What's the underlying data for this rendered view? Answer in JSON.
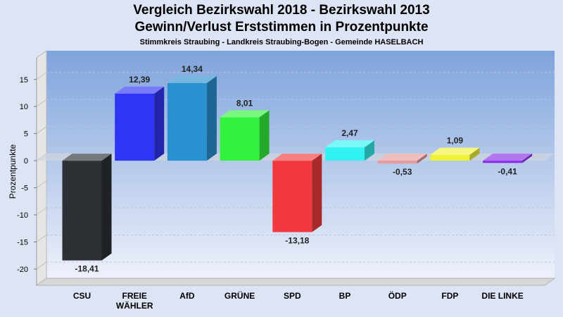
{
  "title": "Vergleich Bezirkswahl 2018 - Bezirkswahl 2013",
  "subtitle": "Gewinn/Verlust Erststimmen in Prozentpunkte",
  "subsubtitle": "Stimmkreis Straubing - Landkreis Straubing-Bogen - Gemeinde HASELBACH",
  "chart_data": {
    "type": "bar",
    "ylabel": "Prozentpunkte",
    "xlabel": "",
    "ylim": [
      -23,
      19
    ],
    "yticks": [
      15,
      10,
      5,
      0,
      -5,
      -10,
      -15,
      -20
    ],
    "ytick_labels": [
      "15",
      "10",
      "5",
      "0",
      "-5",
      "-10",
      "-15",
      "-20"
    ],
    "grid": true,
    "categories": [
      [
        "CSU"
      ],
      [
        "FREIE",
        "WÄHLER"
      ],
      [
        "AfD"
      ],
      [
        "GRÜNE"
      ],
      [
        "SPD"
      ],
      [
        "BP"
      ],
      [
        "ÖDP"
      ],
      [
        "FDP"
      ],
      [
        "DIE LINKE"
      ]
    ],
    "values": [
      -18.41,
      12.39,
      14.34,
      8.01,
      -13.18,
      2.47,
      -0.53,
      1.09,
      -0.41
    ],
    "value_labels": [
      "-18,41",
      "12,39",
      "14,34",
      "8,01",
      "-13,18",
      "2,47",
      "-0,53",
      "1,09",
      "-0,41"
    ],
    "colors": [
      "#2d3034",
      "#2f35f5",
      "#2a90d0",
      "#33f23d",
      "#f23a3e",
      "#33f2f2",
      "#e89a9a",
      "#eff23a",
      "#8a2be8"
    ],
    "background_top": "#7ea3dc",
    "background_bottom": "#eef1fa"
  }
}
